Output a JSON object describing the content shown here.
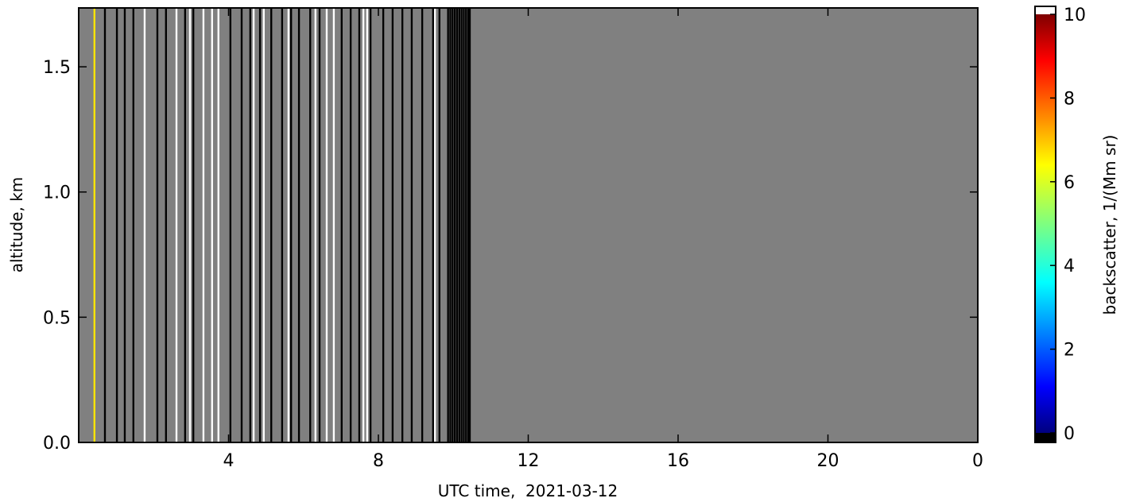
{
  "chart_data": {
    "type": "heatmap",
    "colormap": "jet",
    "under_color": "#000000",
    "over_color": "#ffffff",
    "missing_color": "#808080",
    "x": [
      0.42,
      0.7,
      1.02,
      1.23,
      1.46,
      1.76,
      2.1,
      2.33,
      2.61,
      2.84,
      2.97,
      3.06,
      3.33,
      3.56,
      3.73,
      4.05,
      4.35,
      4.58,
      4.67,
      4.84,
      4.94,
      5.14,
      5.43,
      5.6,
      5.67,
      5.88,
      6.18,
      6.32,
      6.43,
      6.62,
      6.81,
      7.02,
      7.26,
      7.49,
      7.6,
      7.7,
      7.79,
      8.13,
      8.38,
      8.64,
      8.89,
      9.17,
      9.46,
      9.51,
      9.63,
      9.86,
      9.92,
      9.98,
      10.04,
      10.1,
      10.16,
      10.22,
      10.28,
      10.34,
      10.4,
      10.44
    ],
    "values": [
      6.5,
      -0.5,
      -0.5,
      -0.5,
      -0.5,
      10.5,
      -0.5,
      -0.5,
      10.5,
      -0.5,
      10.5,
      -0.5,
      10.5,
      10.5,
      10.5,
      -0.5,
      -0.5,
      -0.5,
      10.5,
      -0.5,
      10.5,
      -0.5,
      -0.5,
      10.5,
      -0.5,
      -0.5,
      -0.5,
      10.5,
      -0.5,
      10.5,
      10.5,
      -0.5,
      -0.5,
      -0.5,
      10.5,
      10.5,
      -0.5,
      -0.5,
      -0.5,
      -0.5,
      -0.5,
      -0.5,
      -0.5,
      10.5,
      -0.5,
      -0.5,
      -0.5,
      -0.5,
      -0.5,
      -0.5,
      -0.5,
      -0.5,
      -0.5,
      -0.5,
      -0.5,
      -0.5
    ],
    "xlim": [
      0,
      24
    ],
    "xticks": [
      4,
      8,
      12,
      16,
      20,
      {
        "value": 24,
        "label": "0"
      }
    ],
    "ylim": [
      0,
      1.735
    ],
    "yticks": [
      {
        "value": 0,
        "label": "0.0"
      },
      0.5,
      {
        "value": 1,
        "label": "1.0"
      },
      1.5
    ],
    "xlabel": "UTC time,  2021-03-12",
    "ylabel": "altitude, km",
    "colorbar_label": "backscatter, 1/(Mm sr)",
    "clim": [
      0,
      10
    ],
    "cticks": [
      0,
      2,
      4,
      6,
      8,
      10
    ]
  }
}
